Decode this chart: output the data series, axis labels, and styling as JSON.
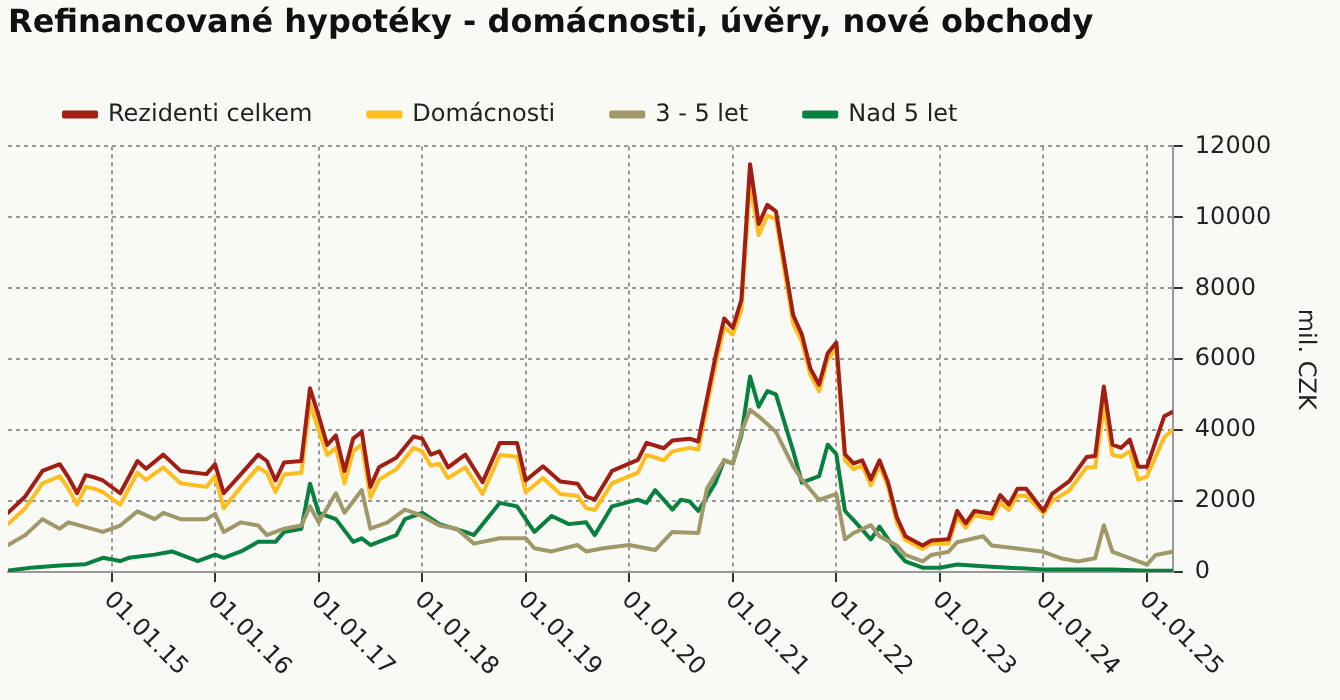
{
  "chart_data": {
    "type": "line",
    "title": "Refinancované hypotéky - domácnosti, úvěry, nové obchody",
    "ylabel": "mil. CZK",
    "legend": "top left",
    "grid": true,
    "marker": "none",
    "line_style": "solid",
    "xlim": [
      "2014-01",
      "2025-04"
    ],
    "xticks": [
      {
        "value": "2015-01",
        "label": "01.01.15"
      },
      {
        "value": "2016-01",
        "label": "01.01.16"
      },
      {
        "value": "2017-01",
        "label": "01.01.17"
      },
      {
        "value": "2018-01",
        "label": "01.01.18"
      },
      {
        "value": "2019-01",
        "label": "01.01.19"
      },
      {
        "value": "2020-01",
        "label": "01.01.20"
      },
      {
        "value": "2021-01",
        "label": "01.01.21"
      },
      {
        "value": "2022-01",
        "label": "01.01.22"
      },
      {
        "value": "2023-01",
        "label": "01.01.23"
      },
      {
        "value": "2024-01",
        "label": "01.01.24"
      },
      {
        "value": "2025-01",
        "label": "01.01.25"
      }
    ],
    "ylim": [
      0,
      12000
    ],
    "yticks": [
      0,
      2000,
      4000,
      6000,
      8000,
      10000,
      12000
    ],
    "series": [
      {
        "name": "Rezidenti celkem",
        "color": "#a01e14",
        "x": [
          "2014-01",
          "2014-03",
          "2014-05",
          "2014-07",
          "2014-08",
          "2014-09",
          "2014-10",
          "2014-11",
          "2014-12",
          "2015-02",
          "2015-04",
          "2015-05",
          "2015-07",
          "2015-09",
          "2015-12",
          "2016-01",
          "2016-02",
          "2016-04",
          "2016-06",
          "2016-07",
          "2016-08",
          "2016-09",
          "2016-11",
          "2016-12",
          "2017-01",
          "2017-02",
          "2017-03",
          "2017-04",
          "2017-05",
          "2017-06",
          "2017-07",
          "2017-08",
          "2017-10",
          "2017-12",
          "2018-01",
          "2018-02",
          "2018-03",
          "2018-04",
          "2018-06",
          "2018-08",
          "2018-10",
          "2018-12",
          "2019-01",
          "2019-03",
          "2019-05",
          "2019-07",
          "2019-08",
          "2019-09",
          "2019-11",
          "2020-02",
          "2020-03",
          "2020-05",
          "2020-06",
          "2020-08",
          "2020-09",
          "2020-11",
          "2020-12",
          "2021-01",
          "2021-02",
          "2021-03",
          "2021-04",
          "2021-05",
          "2021-06",
          "2021-08",
          "2021-09",
          "2021-10",
          "2021-11",
          "2021-12",
          "2022-01",
          "2022-02",
          "2022-03",
          "2022-04",
          "2022-05",
          "2022-06",
          "2022-07",
          "2022-08",
          "2022-09",
          "2022-11",
          "2022-12",
          "2023-02",
          "2023-03",
          "2023-04",
          "2023-05",
          "2023-07",
          "2023-08",
          "2023-09",
          "2023-10",
          "2023-11",
          "2024-01",
          "2024-02",
          "2024-04",
          "2024-06",
          "2024-07",
          "2024-08",
          "2024-09",
          "2024-10",
          "2024-11",
          "2024-12",
          "2025-01",
          "2025-03",
          "2025-04"
        ],
        "values": [
          1670,
          2130,
          2850,
          3040,
          2670,
          2220,
          2730,
          2670,
          2580,
          2220,
          3130,
          2910,
          3310,
          2850,
          2760,
          3040,
          2220,
          2760,
          3310,
          3130,
          2580,
          3090,
          3130,
          5180,
          4400,
          3580,
          3850,
          2850,
          3760,
          3950,
          2400,
          2950,
          3220,
          3820,
          3760,
          3310,
          3400,
          2950,
          3310,
          2530,
          3640,
          3640,
          2580,
          2980,
          2550,
          2490,
          2130,
          2040,
          2850,
          3160,
          3640,
          3490,
          3710,
          3760,
          3680,
          6080,
          7150,
          6880,
          7680,
          11500,
          9810,
          10350,
          10170,
          7240,
          6700,
          5730,
          5280,
          6170,
          6470,
          3320,
          3060,
          3150,
          2610,
          3150,
          2520,
          1550,
          1010,
          750,
          890,
          920,
          1720,
          1370,
          1720,
          1640,
          2170,
          1900,
          2350,
          2350,
          1720,
          2200,
          2560,
          3240,
          3270,
          5230,
          3590,
          3500,
          3730,
          2970,
          2970,
          4390,
          4520
        ]
      },
      {
        "name": "Domácnosti",
        "color": "#ffbe1e",
        "x": [
          "2014-01",
          "2014-03",
          "2014-05",
          "2014-07",
          "2014-08",
          "2014-09",
          "2014-10",
          "2014-11",
          "2014-12",
          "2015-02",
          "2015-04",
          "2015-05",
          "2015-07",
          "2015-09",
          "2015-12",
          "2016-01",
          "2016-02",
          "2016-04",
          "2016-06",
          "2016-07",
          "2016-08",
          "2016-09",
          "2016-11",
          "2016-12",
          "2017-01",
          "2017-02",
          "2017-03",
          "2017-04",
          "2017-05",
          "2017-06",
          "2017-07",
          "2017-08",
          "2017-10",
          "2017-12",
          "2018-01",
          "2018-02",
          "2018-03",
          "2018-04",
          "2018-06",
          "2018-08",
          "2018-10",
          "2018-12",
          "2019-01",
          "2019-03",
          "2019-05",
          "2019-07",
          "2019-08",
          "2019-09",
          "2019-11",
          "2020-02",
          "2020-03",
          "2020-05",
          "2020-06",
          "2020-08",
          "2020-09",
          "2020-11",
          "2020-12",
          "2021-01",
          "2021-02",
          "2021-03",
          "2021-04",
          "2021-05",
          "2021-06",
          "2021-08",
          "2021-09",
          "2021-10",
          "2021-11",
          "2021-12",
          "2022-01",
          "2022-02",
          "2022-03",
          "2022-04",
          "2022-05",
          "2022-06",
          "2022-07",
          "2022-08",
          "2022-09",
          "2022-11",
          "2022-12",
          "2023-02",
          "2023-03",
          "2023-04",
          "2023-05",
          "2023-07",
          "2023-08",
          "2023-09",
          "2023-10",
          "2023-11",
          "2024-01",
          "2024-02",
          "2024-04",
          "2024-06",
          "2024-07",
          "2024-08",
          "2024-09",
          "2024-10",
          "2024-11",
          "2024-12",
          "2025-01",
          "2025-03",
          "2025-04"
        ],
        "values": [
          1350,
          1800,
          2500,
          2700,
          2350,
          1900,
          2400,
          2350,
          2250,
          1900,
          2800,
          2600,
          2950,
          2500,
          2400,
          2700,
          1800,
          2400,
          2950,
          2800,
          2250,
          2750,
          2800,
          4750,
          4000,
          3300,
          3500,
          2500,
          3400,
          3600,
          2100,
          2600,
          2900,
          3500,
          3400,
          3000,
          3050,
          2650,
          2950,
          2200,
          3300,
          3250,
          2250,
          2650,
          2200,
          2150,
          1800,
          1750,
          2500,
          2800,
          3300,
          3150,
          3400,
          3500,
          3450,
          5850,
          6900,
          6700,
          7400,
          11000,
          9500,
          10050,
          9950,
          7000,
          6500,
          5550,
          5100,
          6000,
          6300,
          3150,
          2900,
          3000,
          2450,
          3000,
          2400,
          1400,
          900,
          650,
          800,
          800,
          1550,
          1250,
          1600,
          1500,
          1950,
          1750,
          2150,
          2150,
          1650,
          2000,
          2300,
          2950,
          2950,
          4700,
          3300,
          3250,
          3400,
          2600,
          2700,
          3800,
          4000
        ]
      },
      {
        "name": "3 - 5 let",
        "color": "#a09868",
        "x": [
          "2014-01",
          "2014-03",
          "2014-05",
          "2014-07",
          "2014-08",
          "2014-12",
          "2015-02",
          "2015-04",
          "2015-06",
          "2015-07",
          "2015-09",
          "2015-12",
          "2016-01",
          "2016-02",
          "2016-04",
          "2016-06",
          "2016-07",
          "2016-09",
          "2016-11",
          "2016-12",
          "2017-01",
          "2017-03",
          "2017-04",
          "2017-06",
          "2017-07",
          "2017-09",
          "2017-11",
          "2018-01",
          "2018-03",
          "2018-05",
          "2018-07",
          "2018-10",
          "2019-01",
          "2019-02",
          "2019-04",
          "2019-07",
          "2019-08",
          "2019-10",
          "2020-01",
          "2020-04",
          "2020-06",
          "2020-09",
          "2020-10",
          "2020-12",
          "2021-01",
          "2021-02",
          "2021-03",
          "2021-04",
          "2021-06",
          "2021-08",
          "2021-09",
          "2021-11",
          "2022-01",
          "2022-02",
          "2022-03",
          "2022-05",
          "2022-06",
          "2022-08",
          "2022-09",
          "2022-11",
          "2022-12",
          "2023-02",
          "2023-03",
          "2023-06",
          "2023-07",
          "2023-10",
          "2024-01",
          "2024-03",
          "2024-05",
          "2024-07",
          "2024-08",
          "2024-09",
          "2024-11",
          "2025-01",
          "2025-02",
          "2025-04"
        ],
        "values": [
          760,
          1040,
          1490,
          1220,
          1400,
          1130,
          1310,
          1710,
          1490,
          1670,
          1490,
          1490,
          1640,
          1130,
          1400,
          1310,
          1040,
          1220,
          1310,
          1850,
          1400,
          2220,
          1670,
          2310,
          1220,
          1400,
          1760,
          1580,
          1310,
          1220,
          800,
          950,
          950,
          670,
          580,
          760,
          580,
          670,
          760,
          620,
          1130,
          1100,
          2350,
          3150,
          3060,
          3950,
          4570,
          4390,
          3950,
          2970,
          2610,
          2030,
          2200,
          920,
          1100,
          1320,
          1010,
          750,
          480,
          300,
          480,
          570,
          840,
          1010,
          750,
          660,
          570,
          390,
          300,
          390,
          1320,
          570,
          390,
          210,
          480,
          570
        ]
      },
      {
        "name": "Nad 5 let",
        "color": "#088040",
        "x": [
          "2014-01",
          "2014-04",
          "2014-07",
          "2014-10",
          "2014-12",
          "2015-02",
          "2015-03",
          "2015-06",
          "2015-08",
          "2015-10",
          "2015-11",
          "2016-01",
          "2016-02",
          "2016-04",
          "2016-06",
          "2016-08",
          "2016-09",
          "2016-11",
          "2016-12",
          "2017-01",
          "2017-03",
          "2017-05",
          "2017-06",
          "2017-07",
          "2017-10",
          "2017-11",
          "2018-01",
          "2018-03",
          "2018-06",
          "2018-07",
          "2018-10",
          "2018-12",
          "2019-02",
          "2019-04",
          "2019-06",
          "2019-08",
          "2019-09",
          "2019-11",
          "2020-02",
          "2020-03",
          "2020-04",
          "2020-06",
          "2020-07",
          "2020-08",
          "2020-09",
          "2020-11",
          "2020-12",
          "2021-01",
          "2021-02",
          "2021-03",
          "2021-04",
          "2021-05",
          "2021-06",
          "2021-08",
          "2021-09",
          "2021-11",
          "2021-12",
          "2022-01",
          "2022-02",
          "2022-03",
          "2022-05",
          "2022-06",
          "2022-08",
          "2022-09",
          "2022-11",
          "2023-01",
          "2023-03",
          "2023-06",
          "2023-09",
          "2024-01",
          "2024-05",
          "2024-09",
          "2025-01",
          "2025-04"
        ],
        "values": [
          40,
          130,
          180,
          220,
          400,
          310,
          400,
          490,
          580,
          400,
          310,
          490,
          400,
          580,
          850,
          850,
          1130,
          1220,
          2490,
          1670,
          1490,
          850,
          950,
          760,
          1040,
          1490,
          1670,
          1350,
          1130,
          1040,
          1950,
          1850,
          1130,
          1580,
          1350,
          1400,
          1040,
          1850,
          2040,
          1950,
          2310,
          1760,
          2040,
          1990,
          1720,
          2520,
          3150,
          3060,
          3860,
          5510,
          4660,
          5100,
          5010,
          3410,
          2520,
          2700,
          3590,
          3320,
          1720,
          1460,
          920,
          1280,
          570,
          300,
          120,
          120,
          210,
          160,
          120,
          70,
          70,
          70,
          35,
          35
        ]
      }
    ]
  }
}
